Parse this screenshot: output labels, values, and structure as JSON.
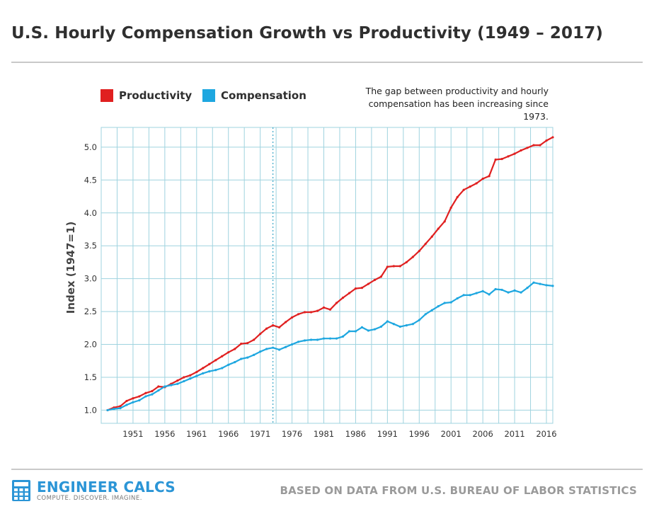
{
  "title": "U.S. Hourly Compensation Growth vs Productivity (1949 – 2017)",
  "legend": [
    {
      "label": "Productivity",
      "color": "#e02020"
    },
    {
      "label": "Compensation",
      "color": "#1ea7e0"
    }
  ],
  "annotation": {
    "line1": "The gap between productivity and hourly",
    "line2": "compensation has been increasing since 1973."
  },
  "branding": {
    "name": "ENGINEER CALCS",
    "tagline": "COMPUTE. DISCOVER. IMAGINE.",
    "icon": "calculator-icon"
  },
  "source": "BASED ON DATA FROM U.S. BUREAU OF LABOR STATISTICS",
  "chart_data": {
    "type": "line",
    "title": "U.S. Hourly Compensation Growth vs Productivity (1949 – 2017)",
    "xlabel": "",
    "ylabel": "Index (1947=1)",
    "xlim": [
      1946,
      2017
    ],
    "ylim": [
      0.8,
      5.3
    ],
    "xticks": [
      1951,
      1956,
      1961,
      1966,
      1971,
      1976,
      1981,
      1986,
      1991,
      1996,
      2001,
      2006,
      2011,
      2016
    ],
    "yticks": [
      1.0,
      1.5,
      2.0,
      2.5,
      3.0,
      3.5,
      4.0,
      4.5,
      5.0
    ],
    "ytick_labels": [
      "1.0",
      "1.5",
      "2.0",
      "2.5",
      "3.0",
      "3.5",
      "4.0",
      "4.5",
      "5.0"
    ],
    "grid": true,
    "legend_position": "top-left",
    "reference_line": {
      "x": 1973,
      "style": "dotted"
    },
    "series": [
      {
        "name": "Productivity",
        "color": "#e02020",
        "x": [
          1947,
          1948,
          1949,
          1950,
          1951,
          1952,
          1953,
          1954,
          1955,
          1956,
          1957,
          1958,
          1959,
          1960,
          1961,
          1962,
          1963,
          1964,
          1965,
          1966,
          1967,
          1968,
          1969,
          1970,
          1971,
          1972,
          1973,
          1974,
          1975,
          1976,
          1977,
          1978,
          1979,
          1980,
          1981,
          1982,
          1983,
          1984,
          1985,
          1986,
          1987,
          1988,
          1989,
          1990,
          1991,
          1992,
          1993,
          1994,
          1995,
          1996,
          1997,
          1998,
          1999,
          2000,
          2001,
          2002,
          2003,
          2004,
          2005,
          2006,
          2007,
          2008,
          2009,
          2010,
          2011,
          2012,
          2013,
          2014,
          2015,
          2016,
          2017
        ],
        "values": [
          1.0,
          1.04,
          1.06,
          1.14,
          1.18,
          1.21,
          1.26,
          1.29,
          1.36,
          1.35,
          1.4,
          1.45,
          1.5,
          1.53,
          1.58,
          1.64,
          1.7,
          1.76,
          1.82,
          1.88,
          1.93,
          2.01,
          2.02,
          2.07,
          2.16,
          2.24,
          2.29,
          2.26,
          2.34,
          2.41,
          2.46,
          2.49,
          2.49,
          2.51,
          2.56,
          2.53,
          2.63,
          2.71,
          2.78,
          2.85,
          2.86,
          2.92,
          2.98,
          3.03,
          3.18,
          3.19,
          3.19,
          3.25,
          3.33,
          3.42,
          3.53,
          3.64,
          3.76,
          3.87,
          4.08,
          4.24,
          4.35,
          4.4,
          4.45,
          4.52,
          4.56,
          4.81,
          4.82,
          4.86,
          4.9,
          4.95,
          4.99,
          5.03,
          5.03,
          5.1,
          5.15
        ]
      },
      {
        "name": "Compensation",
        "color": "#1ea7e0",
        "x": [
          1947,
          1948,
          1949,
          1950,
          1951,
          1952,
          1953,
          1954,
          1955,
          1956,
          1957,
          1958,
          1959,
          1960,
          1961,
          1962,
          1963,
          1964,
          1965,
          1966,
          1967,
          1968,
          1969,
          1970,
          1971,
          1972,
          1973,
          1974,
          1975,
          1976,
          1977,
          1978,
          1979,
          1980,
          1981,
          1982,
          1983,
          1984,
          1985,
          1986,
          1987,
          1988,
          1989,
          1990,
          1991,
          1992,
          1993,
          1994,
          1995,
          1996,
          1997,
          1998,
          1999,
          2000,
          2001,
          2002,
          2003,
          2004,
          2005,
          2006,
          2007,
          2008,
          2009,
          2010,
          2011,
          2012,
          2013,
          2014,
          2015,
          2016,
          2017
        ],
        "values": [
          1.0,
          1.02,
          1.03,
          1.08,
          1.12,
          1.15,
          1.21,
          1.24,
          1.3,
          1.36,
          1.38,
          1.4,
          1.44,
          1.48,
          1.52,
          1.56,
          1.59,
          1.61,
          1.64,
          1.69,
          1.73,
          1.78,
          1.8,
          1.84,
          1.89,
          1.93,
          1.95,
          1.92,
          1.96,
          2.0,
          2.04,
          2.06,
          2.07,
          2.07,
          2.09,
          2.09,
          2.09,
          2.12,
          2.2,
          2.2,
          2.26,
          2.21,
          2.23,
          2.27,
          2.35,
          2.31,
          2.27,
          2.29,
          2.31,
          2.37,
          2.46,
          2.52,
          2.58,
          2.63,
          2.64,
          2.7,
          2.75,
          2.75,
          2.78,
          2.81,
          2.76,
          2.84,
          2.83,
          2.79,
          2.82,
          2.79,
          2.86,
          2.94,
          2.92,
          2.9,
          2.89
        ]
      }
    ]
  }
}
